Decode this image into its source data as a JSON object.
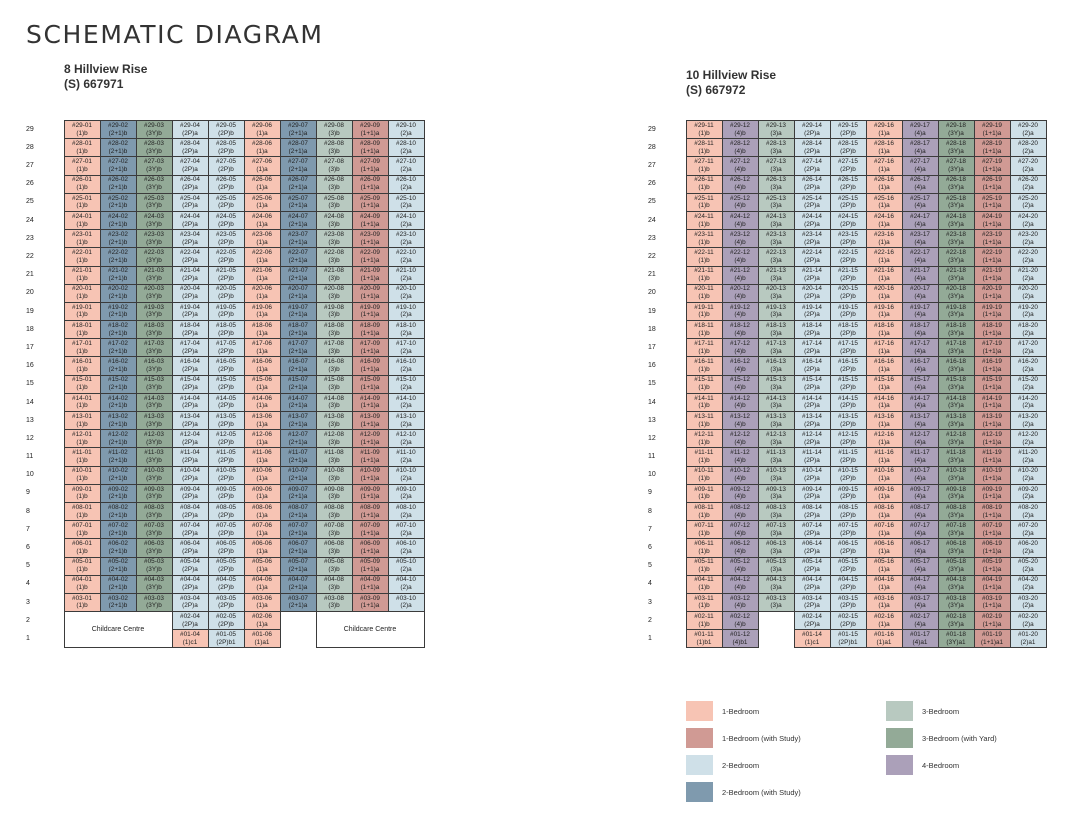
{
  "title": "SCHEMATIC DIAGRAM",
  "types": {
    "A": {
      "label": "1-Bedroom",
      "color": "#f7c4b4"
    },
    "B": {
      "label": "1-Bedroom (with Study)",
      "color": "#d09a94"
    },
    "C": {
      "label": "2-Bedroom",
      "color": "#cfe0e8"
    },
    "D": {
      "label": "2-Bedroom (with Study)",
      "color": "#7f9aae"
    },
    "E": {
      "label": "3-Bedroom",
      "color": "#b8c9c0"
    },
    "F": {
      "label": "3-Bedroom (with Yard)",
      "color": "#93aa97"
    },
    "G": {
      "label": "4-Bedroom",
      "color": "#aba0b9"
    }
  },
  "legend_order": [
    [
      "A",
      "E"
    ],
    [
      "B",
      "F"
    ],
    [
      "C",
      "G"
    ],
    [
      "D",
      ""
    ]
  ],
  "buildings": [
    {
      "name": "8 Hillview Rise",
      "postal": "(S) 667971",
      "stacks": [
        {
          "no": "01",
          "type": "(1)b",
          "cls": "A"
        },
        {
          "no": "02",
          "type": "(2+1)b",
          "cls": "D"
        },
        {
          "no": "03",
          "type": "(3Y)b",
          "cls": "F"
        },
        {
          "no": "04",
          "type": "(2P)a",
          "cls": "C"
        },
        {
          "no": "05",
          "type": "(2P)b",
          "cls": "C"
        },
        {
          "no": "06",
          "type": "(1)a",
          "cls": "A"
        },
        {
          "no": "07",
          "type": "(2+1)a",
          "cls": "D"
        },
        {
          "no": "08",
          "type": "(3)b",
          "cls": "E"
        },
        {
          "no": "09",
          "type": "(1+1)a",
          "cls": "B"
        },
        {
          "no": "10",
          "type": "(2)a",
          "cls": "C"
        }
      ],
      "levels": [
        "29",
        "28",
        "27",
        "26",
        "25",
        "24",
        "23",
        "22",
        "21",
        "20",
        "19",
        "18",
        "17",
        "16",
        "15",
        "14",
        "13",
        "12",
        "11",
        "10",
        "9",
        "8",
        "7",
        "6",
        "5",
        "4",
        "3"
      ],
      "low": [
        {
          "level": "2",
          "cells": [
            {
              "childcare": "Childcare Centre",
              "span": 3,
              "rowspan": 2
            },
            {
              "code": "#02-04",
              "type": "(2P)a",
              "cls": "C"
            },
            {
              "code": "#02-05",
              "type": "(2P)b",
              "cls": "C"
            },
            {
              "code": "#02-06",
              "type": "(1)a",
              "cls": "A"
            },
            {
              "empty": true
            },
            {
              "childcare": "Childcare Centre",
              "span": 3,
              "rowspan": 2
            }
          ]
        },
        {
          "level": "1",
          "cells": [
            {
              "code": "#01-04",
              "type": "(1)c1",
              "cls": "A"
            },
            {
              "code": "#01-05",
              "type": "(2P)b1",
              "cls": "C"
            },
            {
              "code": "#01-06",
              "type": "(1)a1",
              "cls": "A"
            },
            {
              "empty": true
            }
          ]
        }
      ]
    },
    {
      "name": "10 Hillview Rise",
      "postal": "(S) 667972",
      "stacks": [
        {
          "no": "11",
          "type": "(1)b",
          "cls": "A"
        },
        {
          "no": "12",
          "type": "(4)b",
          "cls": "G"
        },
        {
          "no": "13",
          "type": "(3)a",
          "cls": "E"
        },
        {
          "no": "14",
          "type": "(2P)a",
          "cls": "C"
        },
        {
          "no": "15",
          "type": "(2P)b",
          "cls": "C"
        },
        {
          "no": "16",
          "type": "(1)a",
          "cls": "A"
        },
        {
          "no": "17",
          "type": "(4)a",
          "cls": "G"
        },
        {
          "no": "18",
          "type": "(3Y)a",
          "cls": "F"
        },
        {
          "no": "19",
          "type": "(1+1)a",
          "cls": "B"
        },
        {
          "no": "20",
          "type": "(2)a",
          "cls": "C"
        }
      ],
      "levels": [
        "29",
        "28",
        "27",
        "26",
        "25",
        "24",
        "23",
        "22",
        "21",
        "20",
        "19",
        "18",
        "17",
        "16",
        "15",
        "14",
        "13",
        "12",
        "11",
        "10",
        "9",
        "8",
        "7",
        "6",
        "5",
        "4",
        "3"
      ],
      "low": [
        {
          "level": "2",
          "cells": [
            {
              "code": "#02-11",
              "type": "(1)b",
              "cls": "A"
            },
            {
              "code": "#02-12",
              "type": "(4)b",
              "cls": "G"
            },
            {
              "empty": true
            },
            {
              "code": "#02-14",
              "type": "(2P)a",
              "cls": "C"
            },
            {
              "code": "#02-15",
              "type": "(2P)b",
              "cls": "C"
            },
            {
              "code": "#02-16",
              "type": "(1)a",
              "cls": "A"
            },
            {
              "code": "#02-17",
              "type": "(4)a",
              "cls": "G"
            },
            {
              "code": "#02-18",
              "type": "(3Y)a",
              "cls": "F"
            },
            {
              "code": "#02-19",
              "type": "(1+1)a",
              "cls": "B"
            },
            {
              "code": "#02-20",
              "type": "(2)a",
              "cls": "C"
            }
          ]
        },
        {
          "level": "1",
          "cells": [
            {
              "code": "#01-11",
              "type": "(1)b1",
              "cls": "A"
            },
            {
              "code": "#01-12",
              "type": "(4)b1",
              "cls": "G"
            },
            {
              "empty": true
            },
            {
              "code": "#01-14",
              "type": "(1)c1",
              "cls": "A"
            },
            {
              "code": "#01-15",
              "type": "(2P)b1",
              "cls": "C"
            },
            {
              "code": "#01-16",
              "type": "(1)a1",
              "cls": "A"
            },
            {
              "code": "#01-17",
              "type": "(4)a1",
              "cls": "G"
            },
            {
              "code": "#01-18",
              "type": "(3Y)a1",
              "cls": "F"
            },
            {
              "code": "#01-19",
              "type": "(1+1)a1",
              "cls": "B"
            },
            {
              "code": "#01-20",
              "type": "(2)a1",
              "cls": "C"
            }
          ]
        }
      ]
    }
  ]
}
